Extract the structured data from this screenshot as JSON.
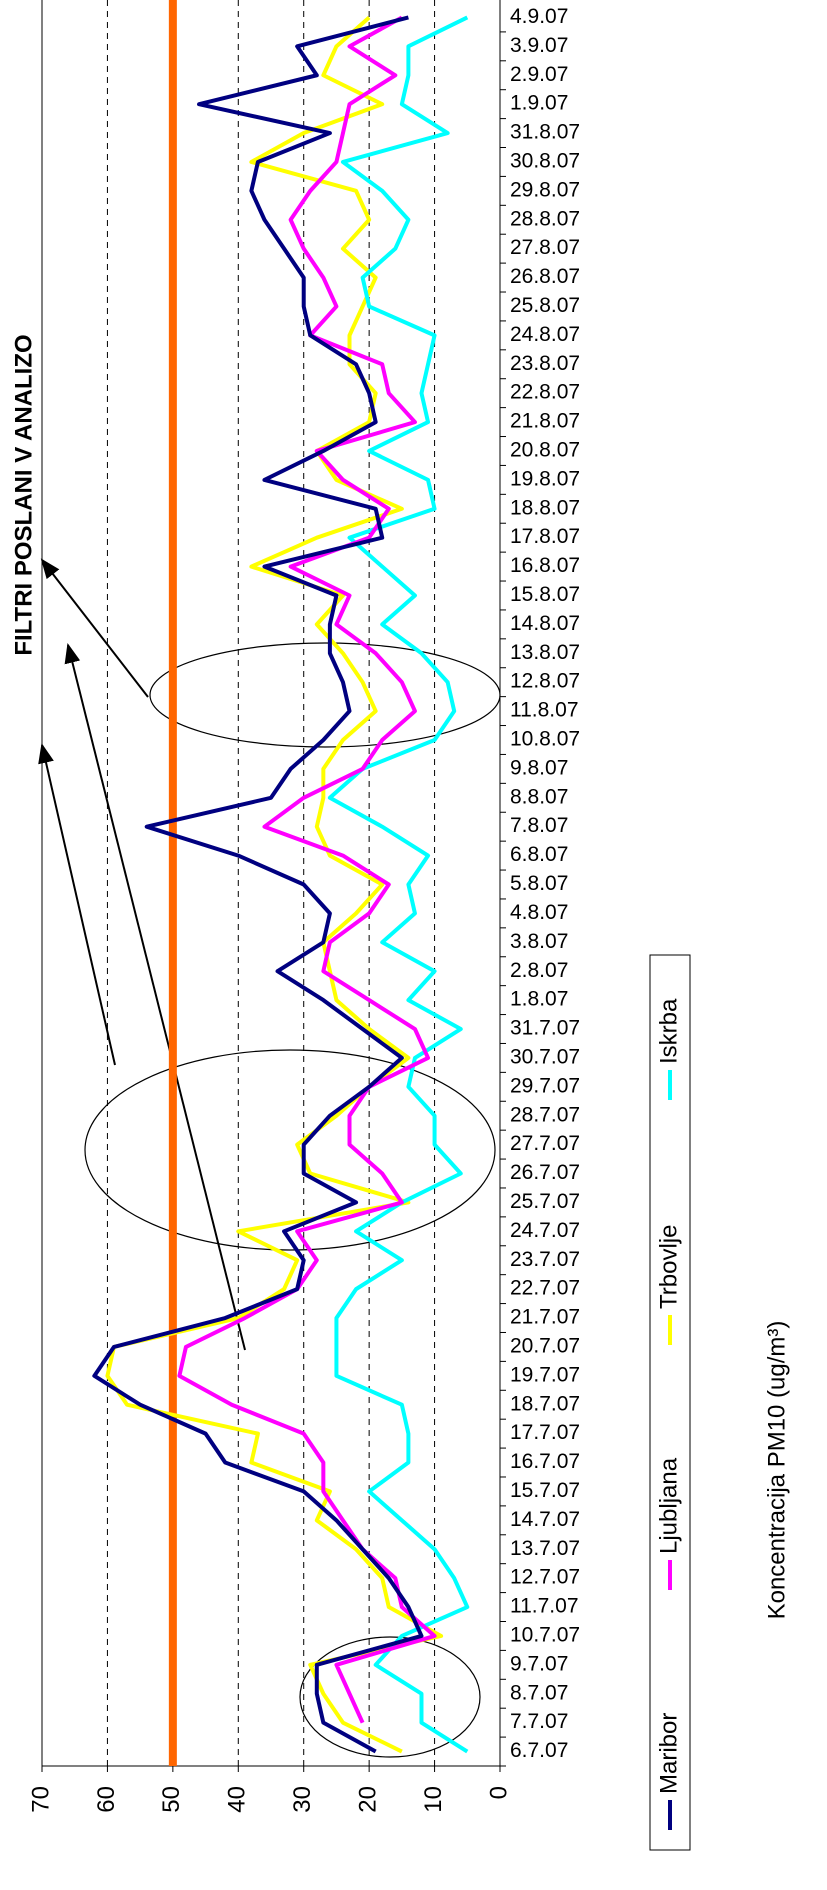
{
  "chart_data": {
    "type": "line",
    "annotation": "FILTRI POSLANI V ANALIZO",
    "y_label": "Koncentracija PM10 (ug/m³)",
    "categories": [
      "6.7.07",
      "7.7.07",
      "8.7.07",
      "9.7.07",
      "10.7.07",
      "11.7.07",
      "12.7.07",
      "13.7.07",
      "14.7.07",
      "15.7.07",
      "16.7.07",
      "17.7.07",
      "18.7.07",
      "19.7.07",
      "20.7.07",
      "21.7.07",
      "22.7.07",
      "23.7.07",
      "24.7.07",
      "25.7.07",
      "26.7.07",
      "27.7.07",
      "28.7.07",
      "29.7.07",
      "30.7.07",
      "31.7.07",
      "1.8.07",
      "2.8.07",
      "3.8.07",
      "4.8.07",
      "5.8.07",
      "6.8.07",
      "7.8.07",
      "8.8.07",
      "9.8.07",
      "10.8.07",
      "11.8.07",
      "12.8.07",
      "13.8.07",
      "14.8.07",
      "15.8.07",
      "16.8.07",
      "17.8.07",
      "18.8.07",
      "19.8.07",
      "20.8.07",
      "21.8.07",
      "22.8.07",
      "23.8.07",
      "24.8.07",
      "25.8.07",
      "26.8.07",
      "27.8.07",
      "28.8.07",
      "29.8.07",
      "30.8.07",
      "31.8.07",
      "1.9.07",
      "2.9.07",
      "3.9.07",
      "4.9.07"
    ],
    "series": [
      {
        "name": "Maribor",
        "color": "#000080",
        "values": [
          19,
          27,
          28,
          28,
          12,
          14,
          17,
          21,
          25,
          30,
          42,
          45,
          55,
          62,
          59,
          42,
          31,
          30,
          33,
          22,
          30,
          30,
          26,
          20,
          15,
          21,
          27,
          34,
          27,
          26,
          30,
          40,
          54,
          35,
          32,
          27,
          23,
          24,
          26,
          26,
          25,
          36,
          18,
          19,
          36,
          27,
          19,
          20,
          22,
          29,
          30,
          30,
          33,
          36,
          38,
          37,
          26,
          46,
          28,
          31,
          14
        ]
      },
      {
        "name": "Ljubljana",
        "color": "#ff00ff",
        "values": [
          null,
          21,
          23,
          25,
          10,
          15,
          16,
          21,
          24,
          27,
          27,
          30,
          41,
          49,
          48,
          39,
          31,
          28,
          31,
          15,
          18,
          23,
          23,
          20,
          11,
          13,
          20,
          27,
          26,
          20,
          17,
          24,
          36,
          30,
          21,
          18,
          13,
          15,
          19,
          25,
          23,
          32,
          20,
          17,
          24,
          28,
          13,
          17,
          18,
          29,
          25,
          27,
          30,
          32,
          29,
          25,
          24,
          23,
          16,
          23,
          15
        ]
      },
      {
        "name": "Trbovlje",
        "color": "#ffff00",
        "values": [
          15,
          24,
          27,
          29,
          9,
          17,
          18,
          22,
          28,
          26,
          38,
          37,
          57,
          60,
          59,
          40,
          33,
          31,
          40,
          14,
          29,
          31,
          25,
          20,
          14,
          20,
          25,
          26,
          27,
          22,
          18,
          26,
          28,
          27,
          27,
          24,
          19,
          21,
          24,
          28,
          24,
          38,
          28,
          15,
          25,
          28,
          20,
          19,
          23,
          23,
          21,
          19,
          24,
          20,
          22,
          38,
          30,
          18,
          27,
          25,
          20
        ]
      },
      {
        "name": "Iskrba",
        "color": "#00ffff",
        "values": [
          5,
          12,
          12,
          19,
          15,
          5,
          7,
          10,
          15,
          20,
          14,
          14,
          15,
          25,
          25,
          25,
          22,
          15,
          22,
          15,
          6,
          10,
          10,
          14,
          13,
          6,
          14,
          10,
          18,
          13,
          14,
          11,
          18,
          26,
          21,
          10,
          7,
          8,
          12,
          18,
          13,
          18,
          23,
          10,
          11,
          20,
          11,
          12,
          11,
          10,
          20,
          21,
          16,
          14,
          18,
          24,
          8,
          15,
          14,
          14,
          5
        ]
      }
    ],
    "threshold": {
      "value": 50,
      "color": "#ff6600"
    },
    "ylim": [
      0,
      70
    ],
    "yticks": [
      0,
      10,
      20,
      30,
      40,
      50,
      60,
      70
    ],
    "grid": true
  }
}
